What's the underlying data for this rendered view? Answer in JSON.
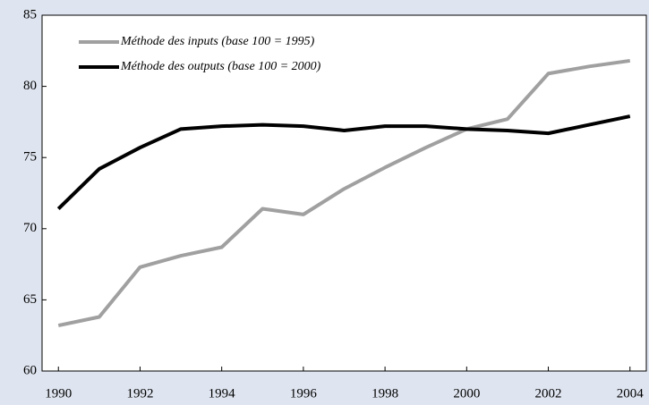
{
  "chart_data": {
    "type": "line",
    "x": [
      1990,
      1991,
      1992,
      1993,
      1994,
      1995,
      1996,
      1997,
      1998,
      1999,
      2000,
      2001,
      2002,
      2003,
      2004
    ],
    "series": [
      {
        "name": "Méthode des inputs  (base 100 = 1995)",
        "color": "#a0a0a0",
        "values": [
          63.2,
          63.8,
          67.3,
          68.1,
          68.7,
          71.4,
          71.0,
          72.8,
          74.3,
          75.7,
          77.0,
          77.7,
          80.9,
          81.4,
          81.8
        ]
      },
      {
        "name": "Méthode des outputs  (base 100 = 2000)",
        "color": "#000000",
        "values": [
          71.4,
          74.2,
          75.7,
          77.0,
          77.2,
          77.3,
          77.2,
          76.9,
          77.2,
          77.2,
          77.0,
          76.9,
          76.7,
          77.3,
          77.9
        ]
      }
    ],
    "xlim": [
      1989.6,
      2004.4
    ],
    "xticks": [
      1990,
      1992,
      1994,
      1996,
      1998,
      2000,
      2002,
      2004
    ],
    "ylim": [
      60,
      85
    ],
    "yticks": [
      60,
      65,
      70,
      75,
      80,
      85
    ],
    "grid": false,
    "legend": "upper left"
  }
}
